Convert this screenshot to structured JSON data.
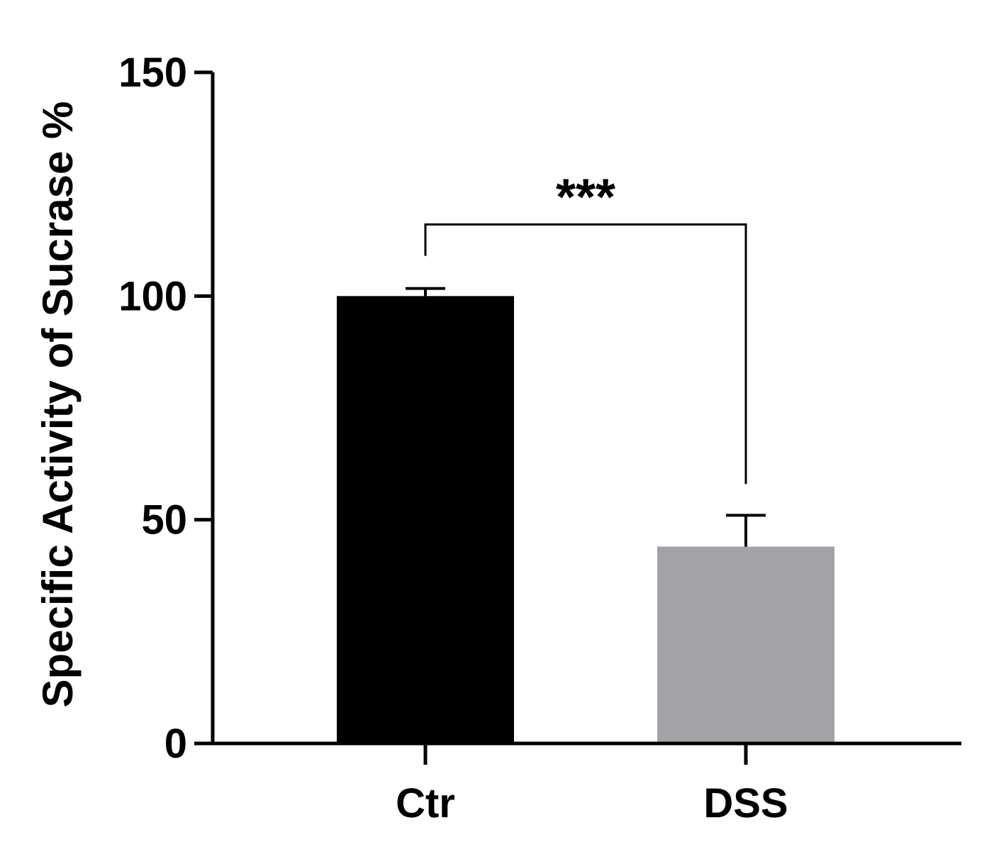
{
  "chart_data": {
    "type": "bar",
    "categories": [
      "Ctr",
      "DSS"
    ],
    "values": [
      100,
      44
    ],
    "errors": [
      1.7,
      7
    ],
    "colors": [
      "#000000",
      "#a3a2a7"
    ],
    "title": "",
    "xlabel": "",
    "ylabel": "Specific Activity of Sucrase %",
    "ylim": [
      0,
      150
    ],
    "yticks": [
      0,
      50,
      100,
      150
    ],
    "ytick_labels": [
      "0",
      "50",
      "100",
      "150"
    ],
    "grid": false,
    "legend": "none",
    "significance": {
      "between": [
        "Ctr",
        "DSS"
      ],
      "label": "***",
      "bracket_y": 116,
      "left_drop_to": 109,
      "right_drop_to": 58
    }
  }
}
